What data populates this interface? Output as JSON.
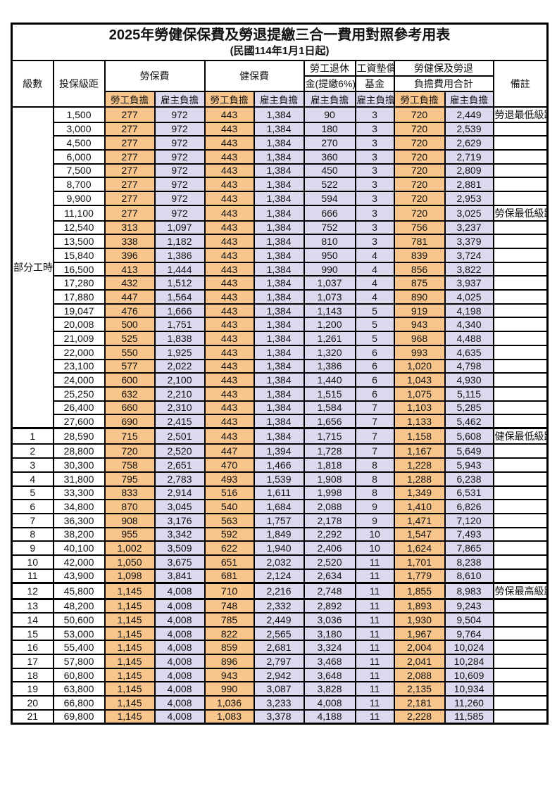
{
  "title": {
    "line1": "2025年勞健保保費及勞退提繳三合一費用對照參考用表",
    "line2": "(民國114年1月1日起)"
  },
  "table": {
    "header": {
      "level": "級數",
      "bracket": "投保級距",
      "labor_ins": "勞保費",
      "health_ins": "健保費",
      "pension_line1": "勞工退休",
      "pension_line2": "金(提繳6%)",
      "fund_line1": "工資墊償",
      "fund_line2": "基金",
      "total_line1": "勞健保及勞退",
      "total_line2": "負擔費用合計",
      "remark": "備註",
      "employee": "勞工負擔",
      "employer": "雇主負擔"
    },
    "part_time_label": "部分工時",
    "part_time_rowspan": 23,
    "rows": [
      [
        "",
        "1,500",
        "277",
        "972",
        "443",
        "1,384",
        "90",
        "3",
        "720",
        "2,449",
        "勞退最低級距"
      ],
      [
        "",
        "3,000",
        "277",
        "972",
        "443",
        "1,384",
        "180",
        "3",
        "720",
        "2,539",
        ""
      ],
      [
        "",
        "4,500",
        "277",
        "972",
        "443",
        "1,384",
        "270",
        "3",
        "720",
        "2,629",
        ""
      ],
      [
        "",
        "6,000",
        "277",
        "972",
        "443",
        "1,384",
        "360",
        "3",
        "720",
        "2,719",
        ""
      ],
      [
        "",
        "7,500",
        "277",
        "972",
        "443",
        "1,384",
        "450",
        "3",
        "720",
        "2,809",
        ""
      ],
      [
        "",
        "8,700",
        "277",
        "972",
        "443",
        "1,384",
        "522",
        "3",
        "720",
        "2,881",
        ""
      ],
      [
        "",
        "9,900",
        "277",
        "972",
        "443",
        "1,384",
        "594",
        "3",
        "720",
        "2,953",
        ""
      ],
      [
        "",
        "11,100",
        "277",
        "972",
        "443",
        "1,384",
        "666",
        "3",
        "720",
        "3,025",
        "勞保最低級距"
      ],
      [
        "",
        "12,540",
        "313",
        "1,097",
        "443",
        "1,384",
        "752",
        "3",
        "756",
        "3,237",
        ""
      ],
      [
        "",
        "13,500",
        "338",
        "1,182",
        "443",
        "1,384",
        "810",
        "3",
        "781",
        "3,379",
        ""
      ],
      [
        "",
        "15,840",
        "396",
        "1,386",
        "443",
        "1,384",
        "950",
        "4",
        "839",
        "3,724",
        ""
      ],
      [
        "",
        "16,500",
        "413",
        "1,444",
        "443",
        "1,384",
        "990",
        "4",
        "856",
        "3,822",
        ""
      ],
      [
        "",
        "17,280",
        "432",
        "1,512",
        "443",
        "1,384",
        "1,037",
        "4",
        "875",
        "3,937",
        ""
      ],
      [
        "",
        "17,880",
        "447",
        "1,564",
        "443",
        "1,384",
        "1,073",
        "4",
        "890",
        "4,025",
        ""
      ],
      [
        "",
        "19,047",
        "476",
        "1,666",
        "443",
        "1,384",
        "1,143",
        "5",
        "919",
        "4,198",
        ""
      ],
      [
        "",
        "20,008",
        "500",
        "1,751",
        "443",
        "1,384",
        "1,200",
        "5",
        "943",
        "4,340",
        ""
      ],
      [
        "",
        "21,009",
        "525",
        "1,838",
        "443",
        "1,384",
        "1,261",
        "5",
        "968",
        "4,488",
        ""
      ],
      [
        "",
        "22,000",
        "550",
        "1,925",
        "443",
        "1,384",
        "1,320",
        "6",
        "993",
        "4,635",
        ""
      ],
      [
        "",
        "23,100",
        "577",
        "2,022",
        "443",
        "1,384",
        "1,386",
        "6",
        "1,020",
        "4,798",
        ""
      ],
      [
        "",
        "24,000",
        "600",
        "2,100",
        "443",
        "1,384",
        "1,440",
        "6",
        "1,043",
        "4,930",
        ""
      ],
      [
        "",
        "25,250",
        "632",
        "2,210",
        "443",
        "1,384",
        "1,515",
        "6",
        "1,075",
        "5,115",
        ""
      ],
      [
        "",
        "26,400",
        "660",
        "2,310",
        "443",
        "1,384",
        "1,584",
        "7",
        "1,103",
        "5,285",
        ""
      ],
      [
        "",
        "27,600",
        "690",
        "2,415",
        "443",
        "1,384",
        "1,656",
        "7",
        "1,133",
        "5,462",
        ""
      ],
      [
        "1",
        "28,590",
        "715",
        "2,501",
        "443",
        "1,384",
        "1,715",
        "7",
        "1,158",
        "5,608",
        "健保最低級距"
      ],
      [
        "2",
        "28,800",
        "720",
        "2,520",
        "447",
        "1,394",
        "1,728",
        "7",
        "1,167",
        "5,649",
        ""
      ],
      [
        "3",
        "30,300",
        "758",
        "2,651",
        "470",
        "1,466",
        "1,818",
        "8",
        "1,228",
        "5,943",
        ""
      ],
      [
        "4",
        "31,800",
        "795",
        "2,783",
        "493",
        "1,539",
        "1,908",
        "8",
        "1,288",
        "6,238",
        ""
      ],
      [
        "5",
        "33,300",
        "833",
        "2,914",
        "516",
        "1,611",
        "1,998",
        "8",
        "1,349",
        "6,531",
        ""
      ],
      [
        "6",
        "34,800",
        "870",
        "3,045",
        "540",
        "1,684",
        "2,088",
        "9",
        "1,410",
        "6,826",
        ""
      ],
      [
        "7",
        "36,300",
        "908",
        "3,176",
        "563",
        "1,757",
        "2,178",
        "9",
        "1,471",
        "7,120",
        ""
      ],
      [
        "8",
        "38,200",
        "955",
        "3,342",
        "592",
        "1,849",
        "2,292",
        "10",
        "1,547",
        "7,493",
        ""
      ],
      [
        "9",
        "40,100",
        "1,002",
        "3,509",
        "622",
        "1,940",
        "2,406",
        "10",
        "1,624",
        "7,865",
        ""
      ],
      [
        "10",
        "42,000",
        "1,050",
        "3,675",
        "651",
        "2,032",
        "2,520",
        "11",
        "1,701",
        "8,238",
        ""
      ],
      [
        "11",
        "43,900",
        "1,098",
        "3,841",
        "681",
        "2,124",
        "2,634",
        "11",
        "1,779",
        "8,610",
        ""
      ],
      [
        "12",
        "45,800",
        "1,145",
        "4,008",
        "710",
        "2,216",
        "2,748",
        "11",
        "1,855",
        "8,983",
        "勞保最高級距"
      ],
      [
        "13",
        "48,200",
        "1,145",
        "4,008",
        "748",
        "2,332",
        "2,892",
        "11",
        "1,893",
        "9,243",
        ""
      ],
      [
        "14",
        "50,600",
        "1,145",
        "4,008",
        "785",
        "2,449",
        "3,036",
        "11",
        "1,930",
        "9,504",
        ""
      ],
      [
        "15",
        "53,000",
        "1,145",
        "4,008",
        "822",
        "2,565",
        "3,180",
        "11",
        "1,967",
        "9,764",
        ""
      ],
      [
        "16",
        "55,400",
        "1,145",
        "4,008",
        "859",
        "2,681",
        "3,324",
        "11",
        "2,004",
        "10,024",
        ""
      ],
      [
        "17",
        "57,800",
        "1,145",
        "4,008",
        "896",
        "2,797",
        "3,468",
        "11",
        "2,041",
        "10,284",
        ""
      ],
      [
        "18",
        "60,800",
        "1,145",
        "4,008",
        "943",
        "2,942",
        "3,648",
        "11",
        "2,088",
        "10,609",
        ""
      ],
      [
        "19",
        "63,800",
        "1,145",
        "4,008",
        "990",
        "3,087",
        "3,828",
        "11",
        "2,135",
        "10,934",
        ""
      ],
      [
        "20",
        "66,800",
        "1,145",
        "4,008",
        "1,036",
        "3,233",
        "4,008",
        "11",
        "2,181",
        "11,260",
        ""
      ],
      [
        "21",
        "69,800",
        "1,145",
        "4,008",
        "1,083",
        "3,378",
        "4,188",
        "11",
        "2,228",
        "11,585",
        ""
      ]
    ]
  },
  "styles": {
    "orange": "#F8C58C",
    "lavender": "#DCD9EE",
    "value_red": "#EE5A5F",
    "note_red": "#FA3C3C",
    "red_rows": [
      0,
      7,
      23,
      34
    ],
    "bold_rows": [
      23,
      34
    ],
    "thick_top_rows": [
      23,
      34
    ],
    "thick_bottom_rows": [
      34
    ]
  }
}
